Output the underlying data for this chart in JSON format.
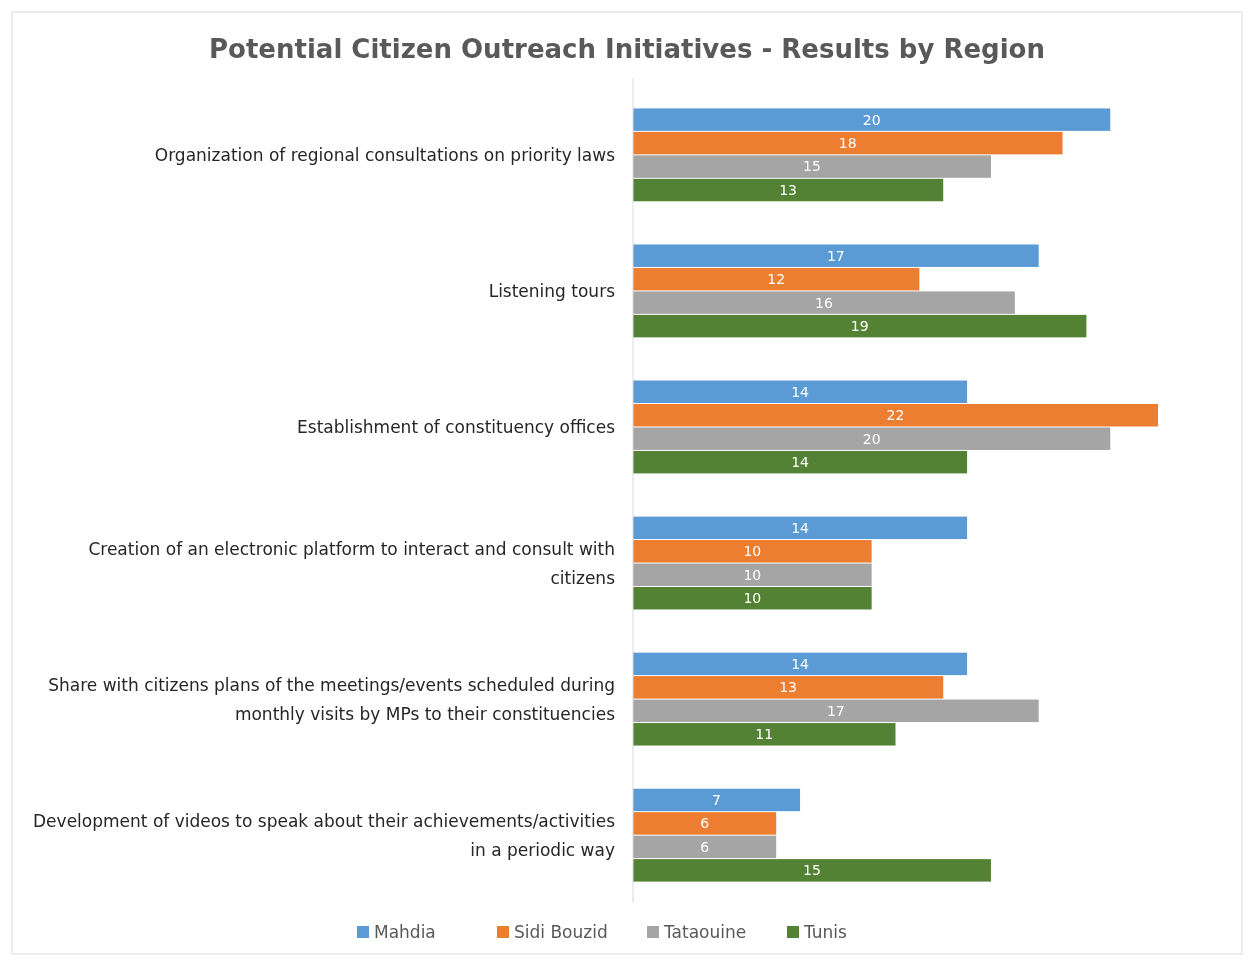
{
  "chart_data": {
    "type": "bar",
    "orientation": "horizontal",
    "title": "Potential Citizen Outreach Initiatives - Results by Region",
    "categories": [
      "Organization of regional consultations on priority laws",
      "Listening tours",
      "Establishment of constituency offices",
      "Creation of an electronic platform to interact and consult with citizens",
      "Share with citizens plans of the meetings/events scheduled during monthly visits by MPs to their constituencies",
      "Development of videos to speak about their achievements/activities in a periodic way"
    ],
    "series": [
      {
        "name": "Mahdia",
        "color": "#5b9bd5",
        "values": [
          20,
          17,
          14,
          14,
          14,
          7
        ]
      },
      {
        "name": "Sidi Bouzid",
        "color": "#ed7d31",
        "values": [
          18,
          12,
          22,
          10,
          13,
          6
        ]
      },
      {
        "name": "Tataouine",
        "color": "#a5a5a5",
        "values": [
          15,
          16,
          20,
          10,
          17,
          6
        ]
      },
      {
        "name": "Tunis",
        "color": "#548235",
        "values": [
          13,
          19,
          14,
          10,
          11,
          15
        ]
      }
    ],
    "data_labels": true,
    "legend": "bottom",
    "grid": false,
    "tick_labels": "y"
  }
}
